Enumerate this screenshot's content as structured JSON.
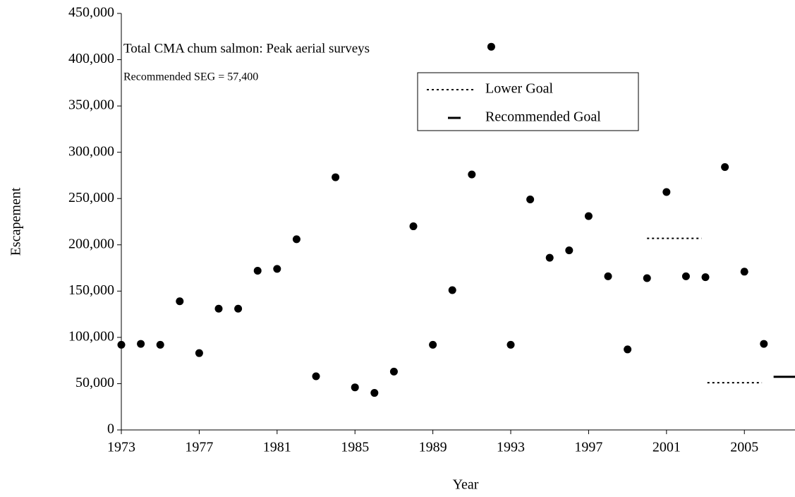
{
  "chart_data": {
    "type": "scatter",
    "annotations": [
      "Total CMA chum salmon: Peak aerial surveys",
      "Recommended SEG = 57,400"
    ],
    "x_label": "Year",
    "y_label": "Escapement",
    "x": [
      1973,
      1974,
      1975,
      1976,
      1977,
      1978,
      1979,
      1980,
      1981,
      1982,
      1983,
      1984,
      1985,
      1986,
      1987,
      1988,
      1989,
      1990,
      1991,
      1992,
      1993,
      1994,
      1995,
      1996,
      1997,
      1998,
      1999,
      2000,
      2001,
      2002,
      2003,
      2004,
      2005,
      2006
    ],
    "values": [
      92000,
      93000,
      92000,
      139000,
      83000,
      131000,
      131000,
      172000,
      174000,
      206000,
      58000,
      273000,
      46000,
      40000,
      63000,
      220000,
      92000,
      151000,
      276000,
      414000,
      92000,
      249000,
      186000,
      194000,
      231000,
      166000,
      87000,
      164000,
      257000,
      166000,
      165000,
      284000,
      171000,
      93000
    ],
    "color": "#000000",
    "lines": [
      {
        "name": "Lower Goal",
        "color": "#000000",
        "dash": "dotted",
        "x": [
          2000,
          2002.8,
          2003,
          2003.1,
          2005.9
        ],
        "values": [
          207000,
          207000,
          null,
          51000,
          51000
        ]
      },
      {
        "name": "Recommended Goal",
        "color": "#000000",
        "dash": "solid",
        "x": [
          2006.5,
          2007.6
        ],
        "values": [
          57400,
          57400
        ]
      }
    ],
    "xlim": [
      1973,
      2007.6
    ],
    "xticks": [
      1973,
      1977,
      1981,
      1985,
      1989,
      1993,
      1997,
      2001,
      2005
    ],
    "ylim": [
      0,
      450000
    ],
    "yticks": [
      0,
      {
        "value": 50000,
        "label": "50,000"
      },
      {
        "value": 100000,
        "label": "100,000"
      },
      {
        "value": 150000,
        "label": "150,000"
      },
      {
        "value": 200000,
        "label": "200,000"
      },
      {
        "value": 250000,
        "label": "250,000"
      },
      {
        "value": 300000,
        "label": "300,000"
      },
      {
        "value": 350000,
        "label": "350,000"
      },
      {
        "value": 400000,
        "label": "400,000"
      },
      {
        "value": 450000,
        "label": "450,000"
      }
    ],
    "legend": "top-right"
  }
}
